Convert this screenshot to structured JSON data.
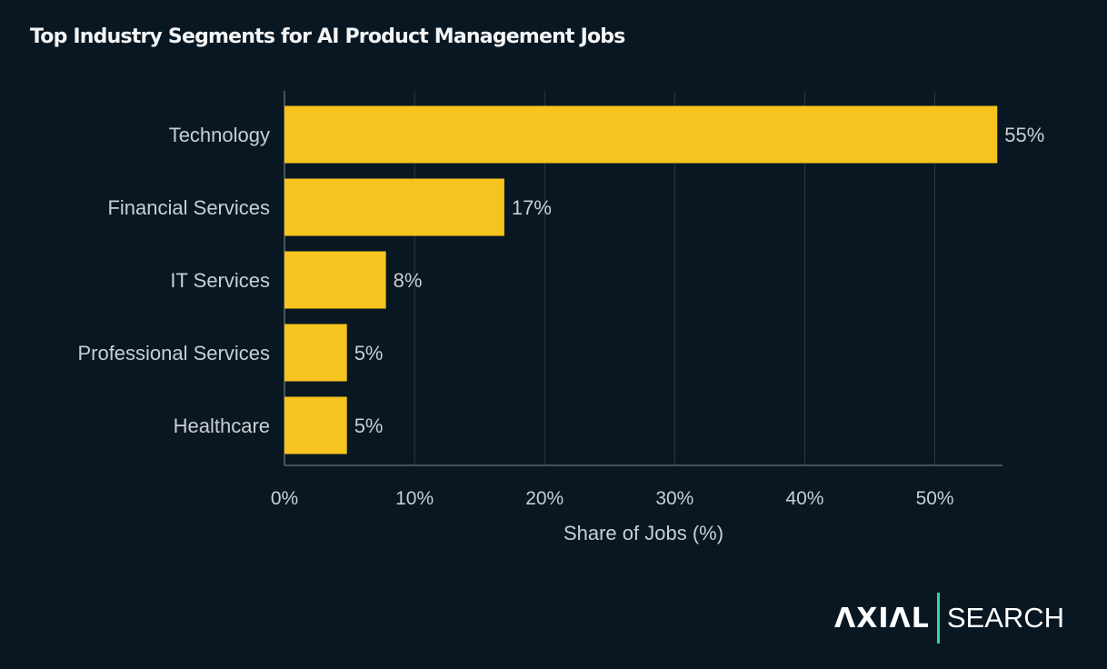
{
  "chart_data": {
    "type": "bar",
    "orientation": "horizontal",
    "title": "Top Industry Segments for AI Product Management Jobs",
    "xlabel": "Share of Jobs (%)",
    "ylabel": "",
    "categories": [
      "Technology",
      "Financial Services",
      "IT Services",
      "Professional Services",
      "Healthcare"
    ],
    "values": [
      54.8,
      16.9,
      7.8,
      4.8,
      4.8
    ],
    "data_labels": [
      "55%",
      "17%",
      "8%",
      "5%",
      "5%"
    ],
    "xlim": [
      0,
      55.2
    ],
    "xticks": [
      0,
      10,
      20,
      30,
      40,
      50
    ],
    "xtick_labels": [
      "0%",
      "10%",
      "20%",
      "30%",
      "40%",
      "50%"
    ],
    "grid": "vertical",
    "colors": {
      "bar": "#F7C41F",
      "background": "#081722",
      "text": "#c9ced3",
      "grid": "#2a3a44"
    }
  },
  "logo": {
    "left": "AXIAL",
    "right": "SEARCH",
    "accent": "#2FD6A6"
  }
}
